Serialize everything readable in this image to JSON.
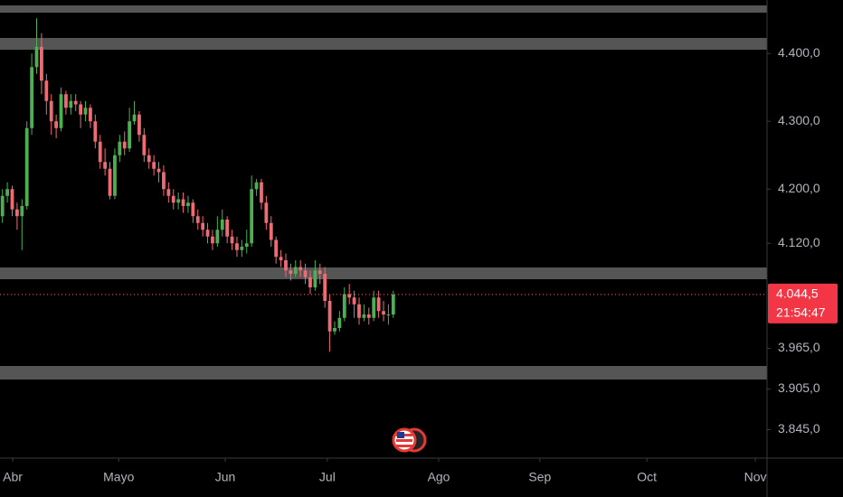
{
  "chart_data": {
    "type": "candlestick",
    "open": [
      4160,
      4190,
      4200,
      4170,
      4160,
      4175,
      4290,
      4380,
      4410,
      4360,
      4330,
      4300,
      4290,
      4340,
      4320,
      4330,
      4325,
      4310,
      4320,
      4300,
      4270,
      4240,
      4230,
      4190,
      4250,
      4270,
      4260,
      4300,
      4310,
      4280,
      4250,
      4240,
      4230,
      4225,
      4200,
      4190,
      4180,
      4185,
      4175,
      4180,
      4160,
      4150,
      4140,
      4130,
      4120,
      4140,
      4155,
      4130,
      4120,
      4110,
      4115,
      4120,
      4200,
      4210,
      4180,
      4150,
      4125,
      4100,
      4095,
      4080,
      4075,
      4085,
      4080,
      4070,
      4055,
      4080,
      4075,
      4035,
      3990,
      3995,
      4010,
      4045,
      4040,
      4030,
      4010,
      4015,
      4010,
      4040,
      4020,
      4015,
      4015
    ],
    "high": [
      4200,
      4210,
      4205,
      4180,
      4185,
      4300,
      4400,
      4452,
      4430,
      4370,
      4340,
      4310,
      4350,
      4345,
      4340,
      4340,
      4330,
      4330,
      4325,
      4310,
      4280,
      4260,
      4240,
      4260,
      4280,
      4285,
      4320,
      4330,
      4315,
      4290,
      4260,
      4250,
      4240,
      4235,
      4210,
      4200,
      4195,
      4195,
      4190,
      4185,
      4170,
      4160,
      4150,
      4140,
      4160,
      4170,
      4160,
      4140,
      4130,
      4125,
      4140,
      4220,
      4215,
      4215,
      4190,
      4160,
      4130,
      4110,
      4105,
      4090,
      4095,
      4095,
      4090,
      4080,
      4095,
      4090,
      4085,
      4045,
      4005,
      4020,
      4055,
      4060,
      4050,
      4040,
      4030,
      4025,
      4050,
      4050,
      4035,
      4030,
      4050
    ],
    "low": [
      4150,
      4180,
      4160,
      4140,
      4110,
      4170,
      4280,
      4370,
      4340,
      4310,
      4280,
      4275,
      4285,
      4310,
      4310,
      4315,
      4290,
      4300,
      4290,
      4260,
      4230,
      4220,
      4185,
      4185,
      4240,
      4250,
      4255,
      4295,
      4270,
      4240,
      4230,
      4220,
      4210,
      4190,
      4180,
      4170,
      4170,
      4165,
      4165,
      4150,
      4140,
      4130,
      4120,
      4110,
      4115,
      4130,
      4120,
      4110,
      4100,
      4100,
      4105,
      4115,
      4190,
      4170,
      4140,
      4115,
      4090,
      4085,
      4070,
      4065,
      4070,
      4070,
      4060,
      4045,
      4050,
      4060,
      4025,
      3960,
      3985,
      3990,
      4005,
      4030,
      4010,
      4000,
      4005,
      4000,
      4005,
      4010,
      4005,
      4000,
      4010
    ],
    "close": [
      4190,
      4200,
      4170,
      4160,
      4175,
      4290,
      4380,
      4410,
      4360,
      4330,
      4300,
      4290,
      4340,
      4320,
      4330,
      4325,
      4310,
      4320,
      4300,
      4270,
      4240,
      4230,
      4190,
      4250,
      4270,
      4260,
      4300,
      4310,
      4280,
      4250,
      4240,
      4230,
      4225,
      4200,
      4190,
      4180,
      4185,
      4175,
      4180,
      4160,
      4150,
      4140,
      4130,
      4120,
      4140,
      4155,
      4130,
      4120,
      4110,
      4115,
      4120,
      4200,
      4210,
      4180,
      4150,
      4125,
      4100,
      4095,
      4080,
      4075,
      4085,
      4080,
      4070,
      4055,
      4080,
      4075,
      4035,
      3990,
      3995,
      4010,
      4045,
      4040,
      4030,
      4010,
      4015,
      4010,
      4040,
      4020,
      4015,
      4015,
      4044.5
    ],
    "up_color": "#4caf50",
    "down_color": "#ef6b73",
    "xlim": [
      -0.5,
      156.5
    ],
    "ylim": [
      3803,
      4479
    ],
    "xticks": [
      {
        "value": 2.1,
        "label": "Abr"
      },
      {
        "value": 23.8,
        "label": "Mayo"
      },
      {
        "value": 45.6,
        "label": "Jun"
      },
      {
        "value": 66.5,
        "label": "Jul"
      },
      {
        "value": 89.3,
        "label": "Ago"
      },
      {
        "value": 110,
        "label": "Sep"
      },
      {
        "value": 131.9,
        "label": "Oct"
      },
      {
        "value": 154.1,
        "label": "Nov"
      }
    ],
    "yticks": [
      {
        "value": 4400,
        "label": "4.400,0"
      },
      {
        "value": 4300,
        "label": "4.300,0"
      },
      {
        "value": 4200,
        "label": "4.200,0"
      },
      {
        "value": 4120,
        "label": "4.120,0"
      },
      {
        "value": 3965,
        "label": "3.965,0"
      },
      {
        "value": 3905,
        "label": "3.905,0"
      },
      {
        "value": 3845,
        "label": "3.845,0"
      }
    ],
    "grid": false,
    "last_price_label": "4.044,5",
    "countdown": "21:54:47"
  }
}
